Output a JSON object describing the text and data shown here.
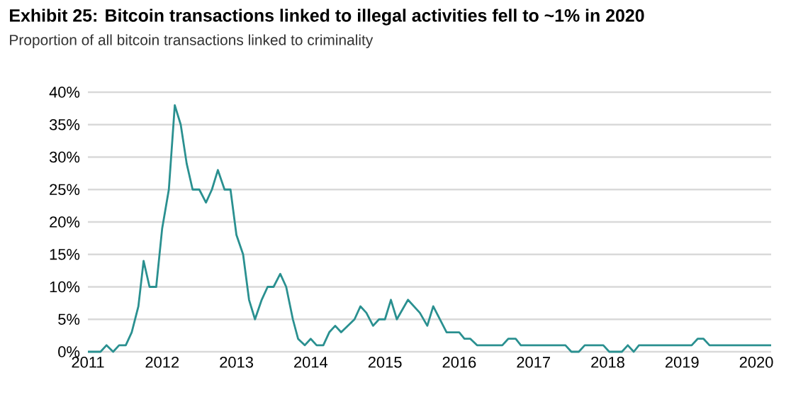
{
  "chart_data": {
    "type": "line",
    "title": "Exhibit 25: Bitcoin transactions linked to illegal activities fell to ~1% in 2020",
    "subtitle": "Proportion of all bitcoin transactions linked to criminality",
    "x": [
      2011.0,
      2011.17,
      2011.25,
      2011.34,
      2011.42,
      2011.51,
      2011.59,
      2011.68,
      2011.75,
      2011.83,
      2011.92,
      2012.0,
      2012.09,
      2012.17,
      2012.25,
      2012.33,
      2012.41,
      2012.5,
      2012.59,
      2012.67,
      2012.75,
      2012.84,
      2012.92,
      2013.0,
      2013.09,
      2013.17,
      2013.25,
      2013.34,
      2013.42,
      2013.5,
      2013.59,
      2013.67,
      2013.76,
      2013.83,
      2013.92,
      2014.0,
      2014.08,
      2014.17,
      2014.25,
      2014.33,
      2014.41,
      2014.5,
      2014.59,
      2014.67,
      2014.75,
      2014.84,
      2014.92,
      2015.0,
      2015.08,
      2015.16,
      2015.31,
      2015.47,
      2015.57,
      2015.65,
      2015.83,
      2016.0,
      2016.07,
      2016.15,
      2016.24,
      2016.58,
      2016.66,
      2016.76,
      2016.83,
      2017.43,
      2017.51,
      2017.61,
      2017.69,
      2017.94,
      2018.02,
      2018.19,
      2018.27,
      2018.35,
      2018.42,
      2019.13,
      2019.21,
      2019.29,
      2019.37,
      2020.2
    ],
    "values": [
      0,
      0,
      1,
      0,
      1,
      1,
      3,
      7,
      14,
      10,
      10,
      19,
      25,
      38,
      35,
      29,
      25,
      25,
      23,
      25,
      28,
      25,
      25,
      18,
      15,
      8,
      5,
      8,
      10,
      10,
      12,
      10,
      5,
      2,
      1,
      2,
      1,
      1,
      3,
      4,
      3,
      4,
      5,
      7,
      6,
      4,
      5,
      5,
      8,
      5,
      8,
      6,
      4,
      7,
      3,
      3,
      2,
      2,
      1,
      1,
      2,
      2,
      1,
      1,
      0,
      0,
      1,
      1,
      0,
      0,
      1,
      0,
      1,
      1,
      2,
      2,
      1,
      1
    ],
    "color": "#2a9090",
    "xlim": [
      2011,
      2020.2
    ],
    "xticks": [
      2011,
      2012,
      2013,
      2014,
      2015,
      2016,
      2017,
      2018,
      2019,
      2020
    ],
    "ylim": [
      0,
      40
    ],
    "yticks": [
      {
        "value": 0,
        "label": "0%"
      },
      {
        "value": 5,
        "label": "5%"
      },
      {
        "value": 10,
        "label": "10%"
      },
      {
        "value": 15,
        "label": "15%"
      },
      {
        "value": 20,
        "label": "20%"
      },
      {
        "value": 25,
        "label": "25%"
      },
      {
        "value": 30,
        "label": "30%"
      },
      {
        "value": 35,
        "label": "35%"
      },
      {
        "value": 40,
        "label": "40%"
      }
    ],
    "grid": "y",
    "line_style": "solid",
    "marker": "none"
  }
}
